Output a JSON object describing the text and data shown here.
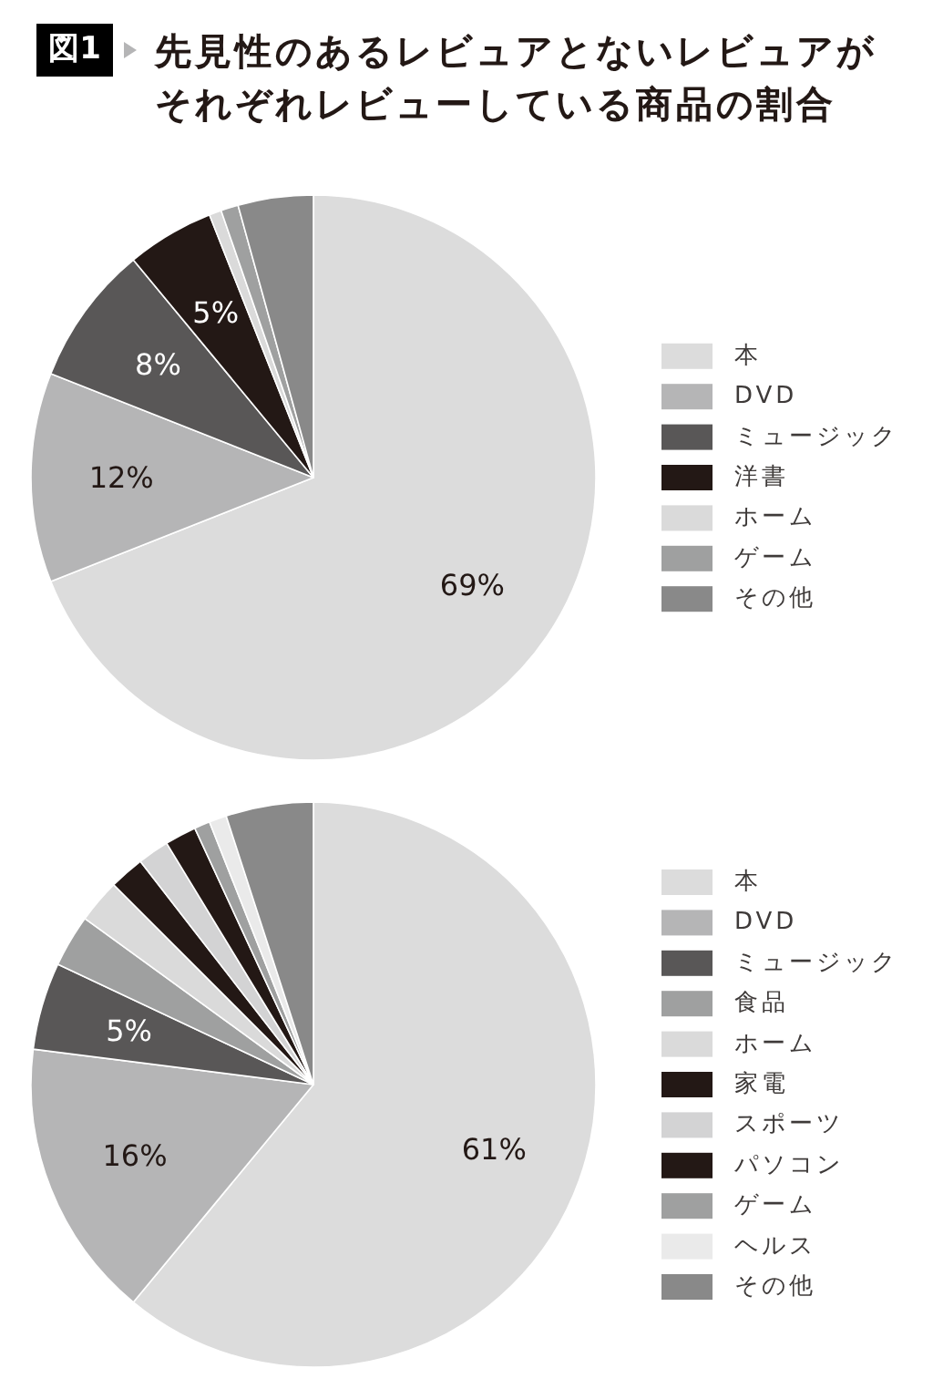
{
  "chart_data": [
    {
      "type": "pie",
      "title": "先見性のあるレビュアとないレビュアがそれぞれレビューしている商品の割合",
      "annotations": [
        "図1"
      ],
      "legend": "right",
      "categories": [
        "本",
        "DVD",
        "ミュージック",
        "洋書",
        "ホーム",
        "ゲーム",
        "その他"
      ],
      "values": [
        69,
        12,
        8,
        5,
        0.7,
        1,
        4.3
      ],
      "colors": [
        "#dcdcdc",
        "#b5b5b6",
        "#595757",
        "#231815",
        "#dadada",
        "#9fa0a0",
        "#898989"
      ],
      "value_labels": [
        "69%",
        "12%",
        "8%",
        "5%",
        null,
        null,
        null
      ]
    },
    {
      "type": "pie",
      "legend": "right",
      "categories": [
        "本",
        "DVD",
        "ミュージック",
        "食品",
        "ホーム",
        "家電",
        "スポーツ",
        "パソコン",
        "ゲーム",
        "ヘルス",
        "その他"
      ],
      "values": [
        61,
        16,
        5,
        3,
        2.5,
        2,
        1.8,
        1.8,
        0.9,
        1,
        5
      ],
      "colors": [
        "#dcdcdc",
        "#b5b5b6",
        "#595757",
        "#9fa0a0",
        "#dadada",
        "#231815",
        "#d3d3d4",
        "#231815",
        "#9fa0a0",
        "#eaeaea",
        "#898989"
      ],
      "value_labels": [
        "61%",
        "16%",
        "5%",
        null,
        null,
        null,
        null,
        null,
        null,
        null,
        null
      ]
    }
  ]
}
